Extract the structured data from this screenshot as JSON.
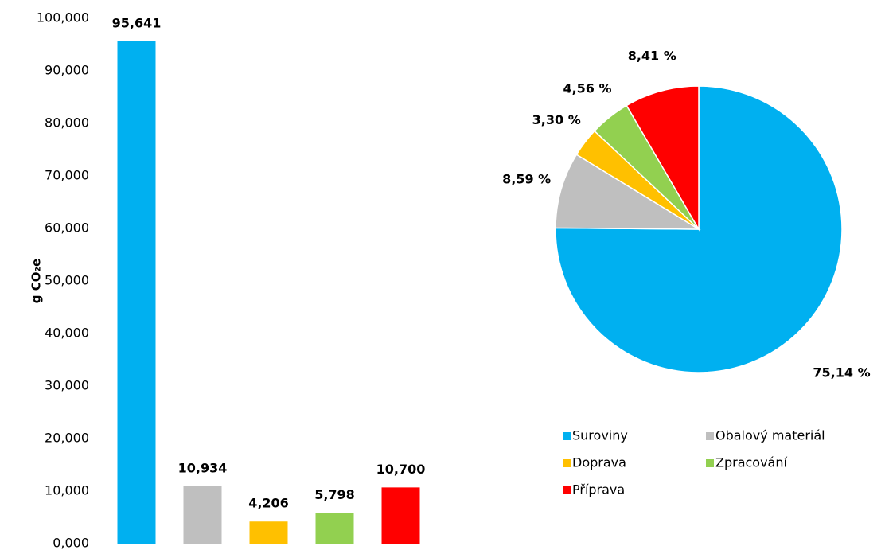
{
  "chart_data": [
    {
      "type": "bar",
      "ylabel": "g CO₂e",
      "categories": [
        null,
        null,
        null,
        null,
        null
      ],
      "values": [
        95.641,
        10.934,
        4.206,
        5.798,
        10.7
      ],
      "value_labels": [
        "95,641",
        "10,934",
        "4,206",
        "5,798",
        "10,700"
      ],
      "colors": [
        "#00b0f0",
        "#bfbfbf",
        "#ffc000",
        "#92d050",
        "#ff0000"
      ],
      "ylim": [
        0,
        100
      ],
      "yticks": [
        {
          "value": 0,
          "label": "0,000"
        },
        {
          "value": 10,
          "label": "10,000"
        },
        {
          "value": 20,
          "label": "20,000"
        },
        {
          "value": 30,
          "label": "30,000"
        },
        {
          "value": 40,
          "label": "40,000"
        },
        {
          "value": 50,
          "label": "50,000"
        },
        {
          "value": 60,
          "label": "60,000"
        },
        {
          "value": 70,
          "label": "70,000"
        },
        {
          "value": 80,
          "label": "80,000"
        },
        {
          "value": 90,
          "label": "90,000"
        },
        {
          "value": 100,
          "label": "100,000"
        }
      ]
    },
    {
      "type": "pie",
      "categories": [
        "Suroviny",
        "Obalový materiál",
        "Doprava",
        "Zpracování",
        "Příprava"
      ],
      "values": [
        75.14,
        8.59,
        3.3,
        4.56,
        8.41
      ],
      "value_labels": [
        "75,14 %",
        "8,59 %",
        "3,30 %",
        "4,56 %",
        "8,41 %"
      ],
      "colors": [
        "#00b0f0",
        "#bfbfbf",
        "#ffc000",
        "#92d050",
        "#ff0000"
      ]
    }
  ]
}
